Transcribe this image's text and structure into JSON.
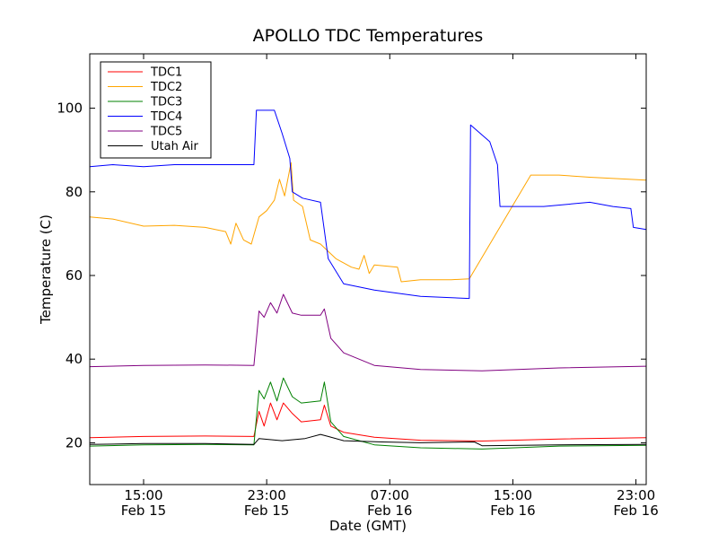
{
  "chart_data": {
    "type": "line",
    "title": "APOLLO TDC Temperatures",
    "xlabel": "Date (GMT)",
    "ylabel": "Temperature (C)",
    "xlim": [
      "2015-02-15 11:30",
      "2015-02-16 23:40"
    ],
    "ylim": [
      10,
      113
    ],
    "x_ticks": [
      {
        "time": "15:00",
        "date": "Feb 15",
        "x": "2015-02-15 15:00"
      },
      {
        "time": "23:00",
        "date": "Feb 15",
        "x": "2015-02-15 23:00"
      },
      {
        "time": "07:00",
        "date": "Feb 16",
        "x": "2015-02-16 07:00"
      },
      {
        "time": "15:00",
        "date": "Feb 16",
        "x": "2015-02-16 15:00"
      },
      {
        "time": "23:00",
        "date": "Feb 16",
        "x": "2015-02-16 23:00"
      }
    ],
    "y_ticks": [
      20,
      40,
      60,
      80,
      100
    ],
    "grid": false,
    "legend_position": "top-left",
    "series": [
      {
        "name": "TDC1",
        "color": "#ff0000",
        "points": [
          [
            "2015-02-15 11:30",
            21.2
          ],
          [
            "2015-02-15 15:00",
            21.5
          ],
          [
            "2015-02-15 19:00",
            21.6
          ],
          [
            "2015-02-15 22:10",
            21.5
          ],
          [
            "2015-02-15 22:30",
            27.5
          ],
          [
            "2015-02-15 22:50",
            24.0
          ],
          [
            "2015-02-15 23:15",
            29.5
          ],
          [
            "2015-02-15 23:40",
            25.5
          ],
          [
            "2015-02-16 00:05",
            29.5
          ],
          [
            "2015-02-16 00:40",
            27.0
          ],
          [
            "2015-02-16 01:15",
            25.0
          ],
          [
            "2015-02-16 02:30",
            25.5
          ],
          [
            "2015-02-16 02:45",
            29.0
          ],
          [
            "2015-02-16 03:10",
            24.0
          ],
          [
            "2015-02-16 04:00",
            22.5
          ],
          [
            "2015-02-16 06:00",
            21.3
          ],
          [
            "2015-02-16 09:00",
            20.6
          ],
          [
            "2015-02-16 13:00",
            20.4
          ],
          [
            "2015-02-16 18:00",
            20.9
          ],
          [
            "2015-02-16 23:40",
            21.2
          ]
        ]
      },
      {
        "name": "TDC2",
        "color": "#ffa500",
        "points": [
          [
            "2015-02-15 11:30",
            74.0
          ],
          [
            "2015-02-15 13:00",
            73.5
          ],
          [
            "2015-02-15 15:00",
            71.8
          ],
          [
            "2015-02-15 17:00",
            72.0
          ],
          [
            "2015-02-15 19:00",
            71.5
          ],
          [
            "2015-02-15 20:20",
            70.5
          ],
          [
            "2015-02-15 20:40",
            67.5
          ],
          [
            "2015-02-15 21:00",
            72.5
          ],
          [
            "2015-02-15 21:30",
            68.5
          ],
          [
            "2015-02-15 22:00",
            67.5
          ],
          [
            "2015-02-15 22:30",
            74.0
          ],
          [
            "2015-02-15 23:00",
            75.5
          ],
          [
            "2015-02-15 23:30",
            78.0
          ],
          [
            "2015-02-15 23:50",
            83.0
          ],
          [
            "2015-02-16 00:10",
            79.0
          ],
          [
            "2015-02-16 00:35",
            87.0
          ],
          [
            "2015-02-16 00:45",
            78.0
          ],
          [
            "2015-02-16 01:20",
            76.5
          ],
          [
            "2015-02-16 01:50",
            68.5
          ],
          [
            "2015-02-16 02:30",
            67.5
          ],
          [
            "2015-02-16 03:30",
            64.0
          ],
          [
            "2015-02-16 04:30",
            62.0
          ],
          [
            "2015-02-16 05:00",
            61.5
          ],
          [
            "2015-02-16 05:20",
            64.8
          ],
          [
            "2015-02-16 05:40",
            60.5
          ],
          [
            "2015-02-16 06:00",
            62.5
          ],
          [
            "2015-02-16 07:30",
            62.0
          ],
          [
            "2015-02-16 07:45",
            58.5
          ],
          [
            "2015-02-16 09:00",
            59.0
          ],
          [
            "2015-02-16 11:00",
            59.0
          ],
          [
            "2015-02-16 12:10",
            59.2
          ],
          [
            "2015-02-16 16:10",
            84.0
          ],
          [
            "2015-02-16 18:00",
            84.0
          ],
          [
            "2015-02-16 20:00",
            83.5
          ],
          [
            "2015-02-16 23:40",
            82.8
          ]
        ]
      },
      {
        "name": "TDC3",
        "color": "#008000",
        "points": [
          [
            "2015-02-15 11:30",
            19.2
          ],
          [
            "2015-02-15 15:00",
            19.5
          ],
          [
            "2015-02-15 19:00",
            19.6
          ],
          [
            "2015-02-15 22:10",
            19.5
          ],
          [
            "2015-02-15 22:30",
            32.5
          ],
          [
            "2015-02-15 22:50",
            30.5
          ],
          [
            "2015-02-15 23:15",
            34.5
          ],
          [
            "2015-02-15 23:40",
            30.0
          ],
          [
            "2015-02-16 00:05",
            35.5
          ],
          [
            "2015-02-16 00:40",
            31.0
          ],
          [
            "2015-02-16 01:15",
            29.5
          ],
          [
            "2015-02-16 02:30",
            30.0
          ],
          [
            "2015-02-16 02:45",
            34.5
          ],
          [
            "2015-02-16 03:10",
            25.0
          ],
          [
            "2015-02-16 04:00",
            21.5
          ],
          [
            "2015-02-16 06:00",
            19.5
          ],
          [
            "2015-02-16 09:00",
            18.8
          ],
          [
            "2015-02-16 13:00",
            18.5
          ],
          [
            "2015-02-16 18:00",
            19.2
          ],
          [
            "2015-02-16 23:40",
            19.4
          ]
        ]
      },
      {
        "name": "TDC4",
        "color": "#0000ff",
        "points": [
          [
            "2015-02-15 11:30",
            86.0
          ],
          [
            "2015-02-15 13:00",
            86.5
          ],
          [
            "2015-02-15 15:00",
            86.0
          ],
          [
            "2015-02-15 17:00",
            86.5
          ],
          [
            "2015-02-15 19:00",
            86.5
          ],
          [
            "2015-02-15 22:10",
            86.5
          ],
          [
            "2015-02-15 22:20",
            99.5
          ],
          [
            "2015-02-15 23:30",
            99.5
          ],
          [
            "2015-02-16 00:00",
            94.0
          ],
          [
            "2015-02-16 00:30",
            88.0
          ],
          [
            "2015-02-16 00:40",
            80.0
          ],
          [
            "2015-02-16 01:20",
            78.5
          ],
          [
            "2015-02-16 02:30",
            77.5
          ],
          [
            "2015-02-16 03:00",
            64.0
          ],
          [
            "2015-02-16 04:00",
            58.0
          ],
          [
            "2015-02-16 06:00",
            56.5
          ],
          [
            "2015-02-16 09:00",
            55.0
          ],
          [
            "2015-02-16 12:10",
            54.5
          ],
          [
            "2015-02-16 12:15",
            96.0
          ],
          [
            "2015-02-16 13:30",
            92.0
          ],
          [
            "2015-02-16 14:00",
            86.5
          ],
          [
            "2015-02-16 14:10",
            76.5
          ],
          [
            "2015-02-16 17:00",
            76.5
          ],
          [
            "2015-02-16 20:00",
            77.5
          ],
          [
            "2015-02-16 21:30",
            76.5
          ],
          [
            "2015-02-16 22:40",
            76.0
          ],
          [
            "2015-02-16 22:50",
            71.5
          ],
          [
            "2015-02-16 23:40",
            71.0
          ]
        ]
      },
      {
        "name": "TDC5",
        "color": "#800080",
        "points": [
          [
            "2015-02-15 11:30",
            38.2
          ],
          [
            "2015-02-15 15:00",
            38.5
          ],
          [
            "2015-02-15 19:00",
            38.6
          ],
          [
            "2015-02-15 22:10",
            38.5
          ],
          [
            "2015-02-15 22:30",
            51.5
          ],
          [
            "2015-02-15 22:50",
            50.0
          ],
          [
            "2015-02-15 23:15",
            53.5
          ],
          [
            "2015-02-15 23:40",
            51.0
          ],
          [
            "2015-02-16 00:05",
            55.5
          ],
          [
            "2015-02-16 00:40",
            51.0
          ],
          [
            "2015-02-16 01:15",
            50.5
          ],
          [
            "2015-02-16 02:30",
            50.5
          ],
          [
            "2015-02-16 02:45",
            52.0
          ],
          [
            "2015-02-16 03:10",
            45.0
          ],
          [
            "2015-02-16 04:00",
            41.5
          ],
          [
            "2015-02-16 06:00",
            38.5
          ],
          [
            "2015-02-16 09:00",
            37.5
          ],
          [
            "2015-02-16 13:00",
            37.2
          ],
          [
            "2015-02-16 18:00",
            37.9
          ],
          [
            "2015-02-16 23:40",
            38.3
          ]
        ]
      },
      {
        "name": "Utah Air",
        "color": "#000000",
        "points": [
          [
            "2015-02-15 11:30",
            19.6
          ],
          [
            "2015-02-15 15:00",
            19.8
          ],
          [
            "2015-02-15 19:00",
            19.8
          ],
          [
            "2015-02-15 22:10",
            19.6
          ],
          [
            "2015-02-15 22:30",
            21.0
          ],
          [
            "2015-02-16 00:00",
            20.5
          ],
          [
            "2015-02-16 01:30",
            21.0
          ],
          [
            "2015-02-16 02:30",
            22.0
          ],
          [
            "2015-02-16 03:00",
            21.5
          ],
          [
            "2015-02-16 04:00",
            20.5
          ],
          [
            "2015-02-16 06:30",
            20.2
          ],
          [
            "2015-02-16 09:00",
            20.0
          ],
          [
            "2015-02-16 12:30",
            20.2
          ],
          [
            "2015-02-16 13:00",
            19.3
          ],
          [
            "2015-02-16 18:00",
            19.5
          ],
          [
            "2015-02-16 23:40",
            19.6
          ]
        ]
      }
    ]
  }
}
